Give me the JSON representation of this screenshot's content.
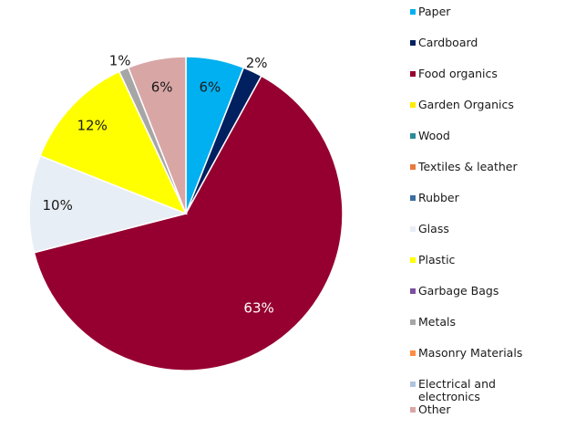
{
  "chart_data": {
    "type": "pie",
    "slices": [
      {
        "name": "Paper",
        "value": 6,
        "label": "6%",
        "color": "#00b0f0",
        "label_color": "#1a1a1a"
      },
      {
        "name": "Cardboard",
        "value": 2,
        "label": "2%",
        "color": "#002060",
        "label_color": "#1a1a1a"
      },
      {
        "name": "Food organics",
        "value": 63,
        "label": "63%",
        "color": "#960030",
        "label_color": "#ffffff"
      },
      {
        "name": "Garden Organics",
        "value": 0,
        "label": "",
        "color": "#ffeb00",
        "label_color": "#1a1a1a"
      },
      {
        "name": "Wood",
        "value": 0,
        "label": "",
        "color": "#2e8a99",
        "label_color": "#1a1a1a"
      },
      {
        "name": "Textiles & leather",
        "value": 0,
        "label": "",
        "color": "#e87a3c",
        "label_color": "#1a1a1a"
      },
      {
        "name": "Rubber",
        "value": 0,
        "label": "",
        "color": "#3c6e9e",
        "label_color": "#1a1a1a"
      },
      {
        "name": "Glass",
        "value": 10,
        "label": "10%",
        "color": "#e8eef5",
        "label_color": "#1a1a1a"
      },
      {
        "name": "Plastic",
        "value": 12,
        "label": "12%",
        "color": "#ffff00",
        "label_color": "#1a1a1a"
      },
      {
        "name": "Garbage Bags",
        "value": 0,
        "label": "",
        "color": "#7a4fa0",
        "label_color": "#1a1a1a"
      },
      {
        "name": "Metals",
        "value": 1,
        "label": "1%",
        "color": "#a6a6a6",
        "label_color": "#1a1a1a"
      },
      {
        "name": "Masonry Materials",
        "value": 0,
        "label": "",
        "color": "#ff8c40",
        "label_color": "#1a1a1a"
      },
      {
        "name": "Electrical and electronics",
        "value": 0,
        "label": "",
        "color": "#b0c4e0",
        "label_color": "#1a1a1a"
      },
      {
        "name": "Other",
        "value": 6,
        "label": "6%",
        "color": "#d9a6a6",
        "label_color": "#1a1a1a"
      }
    ],
    "legend": {
      "placement": "right",
      "entries": [
        {
          "label": "Paper",
          "color": "#00b0f0"
        },
        {
          "label": "Cardboard",
          "color": "#002060"
        },
        {
          "label": "Food organics",
          "color": "#960030"
        },
        {
          "label": "Garden Organics",
          "color": "#ffeb00"
        },
        {
          "label": "Wood",
          "color": "#2e8a99"
        },
        {
          "label": "Textiles & leather",
          "color": "#e87a3c"
        },
        {
          "label": "Rubber",
          "color": "#3c6e9e"
        },
        {
          "label": "Glass",
          "color": "#e8eef5"
        },
        {
          "label": "Plastic",
          "color": "#ffff00"
        },
        {
          "label": "Garbage Bags",
          "color": "#7a4fa0"
        },
        {
          "label": "Metals",
          "color": "#a6a6a6"
        },
        {
          "label": "Masonry Materials",
          "color": "#ff8c40"
        },
        {
          "label": "Electrical and electronics",
          "color": "#b0c4e0"
        },
        {
          "label": "Other",
          "color": "#d9a6a6"
        }
      ]
    }
  }
}
